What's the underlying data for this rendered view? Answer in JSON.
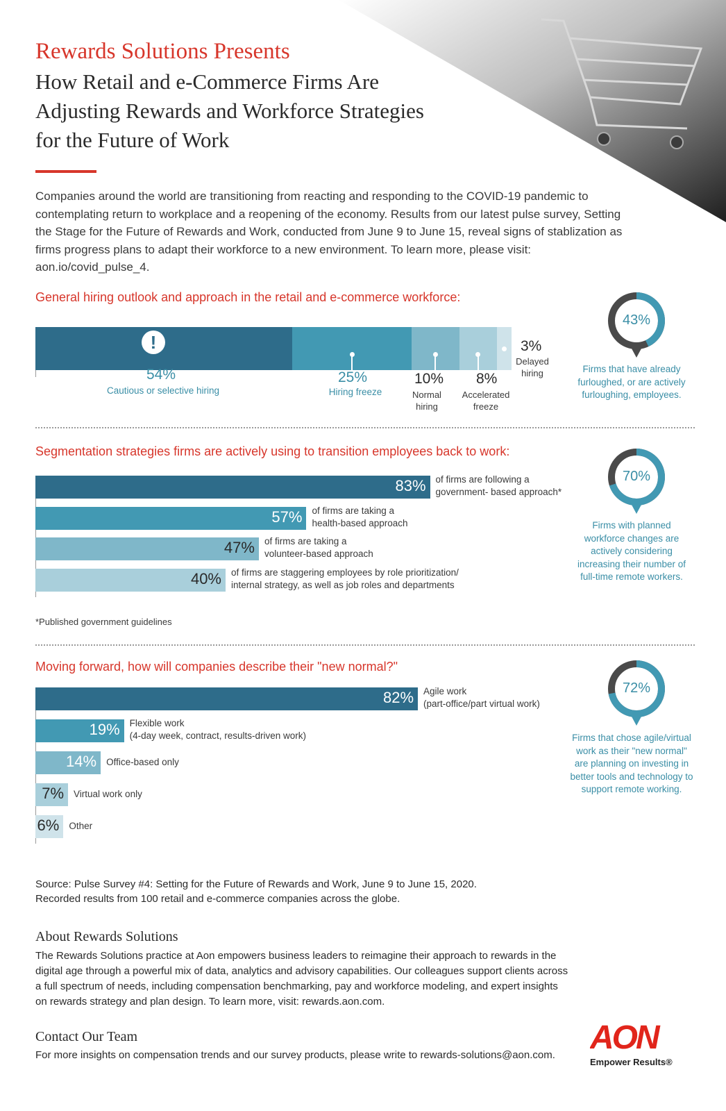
{
  "header": {
    "title": "Rewards Solutions Presents",
    "subtitle_lines": [
      "How Retail and e-Commerce Firms Are",
      "Adjusting Rewards and Workforce Strategies",
      "for the Future of Work"
    ],
    "intro": "Companies around the world are transitioning from reacting and responding to the COVID-19 pandemic to contemplating return to workplace and a reopening of the economy. Results from our latest pulse survey, Setting the Stage for the Future of Rewards and Work, conducted from June 9 to June 15, reveal signs of stablization as firms progress plans to adapt their workforce to a new environment. To learn more, please visit: aon.io/covid_pulse_4.",
    "illustration": "shopping-cart"
  },
  "colors": {
    "accent_red": "#d7362b",
    "teal_1": "#2e6c8a",
    "teal_2": "#4299b3",
    "teal_3": "#7fb7c9",
    "teal_4": "#a9cfdb",
    "teal_5": "#cfe3ea",
    "text_teal": "#3a8ea6",
    "ring_dark": "#4a4a4a"
  },
  "chart_data": [
    {
      "type": "bar",
      "stacked": true,
      "orientation": "horizontal",
      "title": "General hiring outlook and approach in the retail and e-commerce workforce:",
      "categories": [
        "Cautious or selective hiring",
        "Hiring freeze",
        "Normal hiring",
        "Accelerated freeze",
        "Delayed hiring"
      ],
      "values": [
        54,
        25,
        10,
        8,
        3
      ],
      "labels": [
        "54%",
        "25%",
        "10%",
        "8%",
        "3%"
      ],
      "xlim": [
        0,
        100
      ]
    },
    {
      "type": "bar",
      "orientation": "horizontal",
      "title": "Segmentation strategies firms are actively using to transition employees back to work:",
      "values": [
        83,
        57,
        47,
        40
      ],
      "labels": [
        "83%",
        "57%",
        "47%",
        "40%"
      ],
      "descriptions": [
        [
          "of firms are following a",
          "government- based approach*"
        ],
        [
          "of firms are taking a",
          "health-based approach"
        ],
        [
          "of firms are taking a",
          "volunteer-based approach"
        ],
        [
          "of firms are staggering employees by role prioritization/",
          "internal strategy, as well as job roles and departments"
        ]
      ],
      "footnote": "*Published government guidelines",
      "xlim": [
        0,
        100
      ]
    },
    {
      "type": "bar",
      "orientation": "horizontal",
      "title": "Moving forward, how will companies describe their \"new normal?\"",
      "values": [
        82,
        19,
        14,
        7,
        6
      ],
      "labels": [
        "82%",
        "19%",
        "14%",
        "7%",
        "6%"
      ],
      "descriptions": [
        [
          "Agile work",
          "(part-office/part virtual work)"
        ],
        [
          "Flexible work",
          "(4-day week, contract, results-driven work)"
        ],
        [
          "Office-based only"
        ],
        [
          "Virtual work only"
        ],
        [
          "Other"
        ]
      ],
      "xlim": [
        0,
        100
      ]
    }
  ],
  "callouts": [
    {
      "value": 43,
      "label": "43%",
      "text": [
        "Firms that have already",
        "furloughed, or are actively",
        "furloughing, employees."
      ]
    },
    {
      "value": 70,
      "label": "70%",
      "text": [
        "Firms with planned",
        "workforce changes are",
        "actively considering",
        "increasing their number of",
        "full-time remote workers."
      ]
    },
    {
      "value": 72,
      "label": "72%",
      "text": [
        "Firms that chose agile/virtual",
        "work as their \"new normal\"",
        "are planning on investing in",
        "better tools and technology to",
        "support remote working."
      ]
    }
  ],
  "source": [
    "Source: Pulse Survey #4: Setting for the Future of Rewards and Work, June 9 to June 15, 2020.",
    "Recorded results from 100 retail and e-commerce companies across the globe."
  ],
  "about": {
    "heading": "About Rewards Solutions",
    "text": "The Rewards Solutions practice at Aon empowers business leaders to reimagine their approach to rewards in the digital age through a powerful mix of data, analytics and advisory capabilities. Our colleagues support clients across a full spectrum of needs, including compensation benchmarking, pay and workforce modeling, and expert insights on rewards strategy and plan design. To learn more, visit: rewards.aon.com."
  },
  "contact": {
    "heading": "Contact Our Team",
    "text": "For more insights on compensation trends and our survey products, please write to rewards-solutions@aon.com."
  },
  "logo": {
    "name": "AON",
    "tagline": "Empower Results®"
  }
}
